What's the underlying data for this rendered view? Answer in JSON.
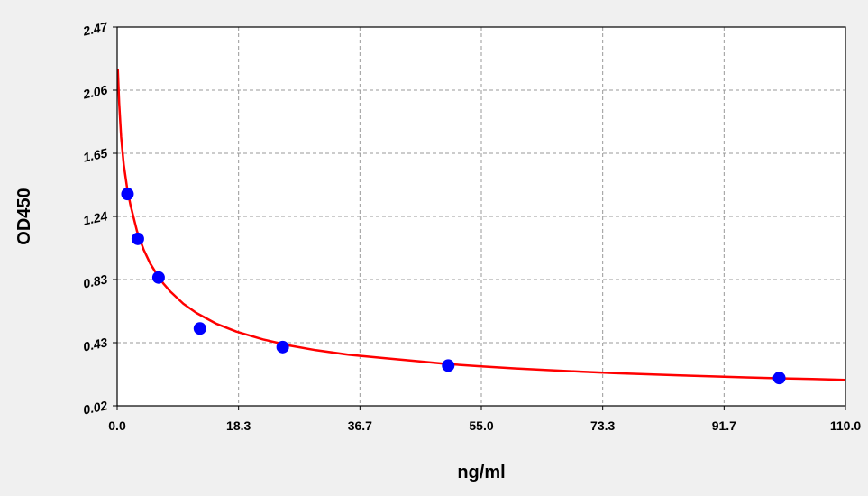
{
  "chart_data": {
    "type": "scatter",
    "title": "",
    "xlabel": "ng/ml",
    "ylabel": "OD450",
    "xlim": [
      0.0,
      110.0
    ],
    "ylim": [
      0.02,
      2.47
    ],
    "x_ticks": [
      "0.0",
      "18.3",
      "36.7",
      "55.0",
      "73.3",
      "91.7",
      "110.0"
    ],
    "y_ticks": [
      "0.02",
      "0.43",
      "0.83",
      "1.24",
      "1.65",
      "2.06",
      "2.47"
    ],
    "grid": true,
    "colors": {
      "points": "#0000ff",
      "curve": "#ff0000",
      "grid": "#9a9a9a",
      "plot_bg": "#ffffff",
      "page_bg": "#f0f0f0"
    },
    "series": [
      {
        "type": "scatter",
        "x": [
          1.56,
          3.12,
          6.25,
          12.5,
          25,
          50,
          100
        ],
        "y": [
          1.39,
          1.1,
          0.85,
          0.52,
          0.4,
          0.28,
          0.2
        ]
      },
      {
        "type": "line",
        "x": [
          0.1,
          0.3,
          0.6,
          1.0,
          1.5,
          2.0,
          3.0,
          4.0,
          5.0,
          6.0,
          7.0,
          8.0,
          10.0,
          12.0,
          15.0,
          18.0,
          22.0,
          26.0,
          30.0,
          35.0,
          40.0,
          45.0,
          50.0,
          55.0,
          60.0,
          65.0,
          70.0,
          75.0,
          80.0,
          85.0,
          90.0,
          95.0,
          100.0,
          105.0,
          110.0
        ],
        "y": [
          2.2,
          1.98,
          1.76,
          1.58,
          1.43,
          1.32,
          1.15,
          1.03,
          0.94,
          0.87,
          0.81,
          0.76,
          0.68,
          0.62,
          0.55,
          0.5,
          0.45,
          0.41,
          0.38,
          0.35,
          0.33,
          0.31,
          0.29,
          0.275,
          0.262,
          0.251,
          0.241,
          0.232,
          0.224,
          0.217,
          0.21,
          0.204,
          0.198,
          0.193,
          0.188
        ]
      }
    ]
  }
}
